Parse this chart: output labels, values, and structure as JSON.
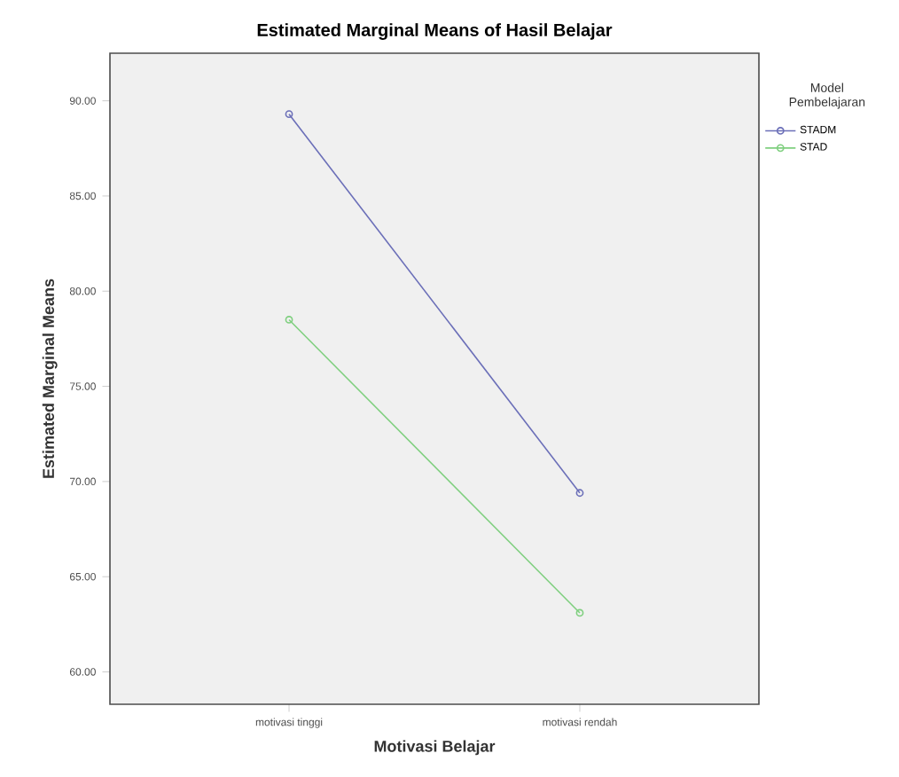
{
  "chart_data": {
    "type": "line",
    "title": "Estimated Marginal Means of Hasil Belajar",
    "xlabel": "Motivasi Belajar",
    "ylabel": "Estimated Marginal Means",
    "legend_title": "Model Pembelajaran",
    "legend": "right",
    "marker": "circle",
    "grid": false,
    "categories": [
      "motivasi tinggi",
      "motivasi rendah"
    ],
    "series": [
      {
        "name": "STADM",
        "color": "#6b6fb8",
        "values": [
          89.3,
          69.4
        ]
      },
      {
        "name": "STAD",
        "color": "#7fcf7f",
        "values": [
          78.5,
          63.1
        ]
      }
    ],
    "ylim": [
      58.3,
      92.5
    ],
    "yticks": [
      {
        "value": 60,
        "label": "60.00"
      },
      {
        "value": 65,
        "label": "65.00"
      },
      {
        "value": 70,
        "label": "70.00"
      },
      {
        "value": 75,
        "label": "75.00"
      },
      {
        "value": 80,
        "label": "80.00"
      },
      {
        "value": 85,
        "label": "85.00"
      },
      {
        "value": 90,
        "label": "90.00"
      }
    ]
  }
}
